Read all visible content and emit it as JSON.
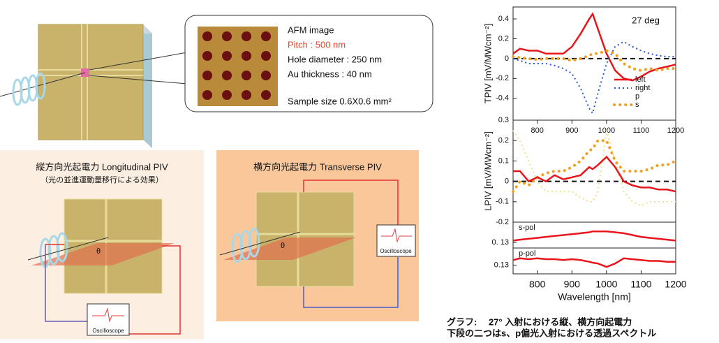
{
  "sample": {
    "callout": {
      "title": "AFM image",
      "pitch": "Pitch : 500 nm",
      "hole": "Hole diameter : 250 nm",
      "thickness": "Au thickness : 40 nm",
      "size": "Sample size 0.6X0.6 mm²"
    }
  },
  "panels": [
    {
      "title": "縦方向光起電力  Longitudinal PIV",
      "subtitle": "（光の並進運動量移行による効果）",
      "angle": "θ",
      "instrument": "Oscilloscope"
    },
    {
      "title": "横方向光起電力  Transverse PIV",
      "angle": "θ",
      "instrument": "Oscilloscope"
    }
  ],
  "caption": [
    "グラフ:　 27°  入射における縦、横方向起電力",
    "下段の二つはs、p偏光入射における透過スペクトル"
  ],
  "chart_data": [
    {
      "type": "line",
      "ylabel": "TPIV [mV/MWcm⁻²]",
      "annotation": "27 deg",
      "x": [
        730,
        750,
        775,
        800,
        825,
        850,
        875,
        900,
        925,
        950,
        960,
        975,
        1000,
        1025,
        1050,
        1075,
        1100,
        1125,
        1150,
        1175,
        1200
      ],
      "xlim": [
        730,
        1200
      ],
      "ylim": [
        -0.62,
        0.52
      ],
      "yticks": [
        -0.4,
        -0.2,
        0.0,
        0.2,
        0.4
      ],
      "legend": "lower right",
      "series": [
        {
          "name": "left",
          "color": "#e8161b",
          "style": "solid",
          "values": [
            0.05,
            0.1,
            0.08,
            0.08,
            0.05,
            0.05,
            0.05,
            0.12,
            0.25,
            0.4,
            0.45,
            0.3,
            0.05,
            -0.12,
            -0.2,
            -0.22,
            -0.18,
            -0.13,
            -0.1,
            -0.08,
            -0.06
          ]
        },
        {
          "name": "right",
          "color": "#2a55d6",
          "style": "dotted",
          "values": [
            0,
            -0.02,
            -0.05,
            -0.05,
            -0.05,
            -0.07,
            -0.1,
            -0.15,
            -0.3,
            -0.5,
            -0.55,
            -0.35,
            -0.05,
            0.12,
            0.17,
            0.12,
            0.08,
            0.05,
            0.03,
            0.02,
            0.02
          ]
        },
        {
          "name": "p",
          "values": [
            null,
            null,
            null,
            null,
            null,
            null,
            null,
            null,
            null,
            null,
            null,
            null,
            null,
            null,
            null,
            null,
            null,
            null,
            null,
            null,
            null
          ]
        },
        {
          "name": "s",
          "color": "#f0a020",
          "style": "dots",
          "values": [
            0.02,
            0.01,
            0,
            -0.01,
            0,
            0,
            0,
            -0.02,
            0,
            0.03,
            0.05,
            0.05,
            0.08,
            0.05,
            -0.05,
            -0.1,
            -0.12,
            -0.1,
            -0.12,
            -0.1,
            -0.1
          ]
        }
      ]
    },
    {
      "type": "line",
      "ylabel": "LPIV [mV/MWcm⁻²]",
      "x": [
        730,
        750,
        775,
        800,
        825,
        850,
        875,
        900,
        925,
        950,
        960,
        975,
        1000,
        1025,
        1050,
        1075,
        1100,
        1125,
        1150,
        1175,
        1200
      ],
      "xlim": [
        730,
        1200
      ],
      "xticks": [
        800,
        900,
        1000,
        1100,
        1200
      ],
      "ylim": [
        -0.2,
        0.3
      ],
      "yticks": [
        -0.2,
        -0.1,
        0.0,
        0.1,
        0.2,
        0.3
      ],
      "series": [
        {
          "color": "#f0e08a",
          "style": "dotted",
          "values": [
            0.25,
            0.2,
            0.1,
            0.0,
            -0.05,
            -0.05,
            -0.05,
            -0.05,
            -0.08,
            -0.1,
            -0.1,
            -0.05,
            0.25,
            0.1,
            -0.05,
            -0.1,
            -0.12,
            -0.1,
            -0.1,
            -0.1,
            -0.1
          ]
        },
        {
          "color": "#f0a020",
          "style": "dots",
          "values": [
            -0.05,
            0.0,
            -0.02,
            0.02,
            0.04,
            0.05,
            0.05,
            0.07,
            0.1,
            0.15,
            0.16,
            0.2,
            0.2,
            0.1,
            0.05,
            0.05,
            0.05,
            0.06,
            0.08,
            0.08,
            0.1
          ]
        },
        {
          "color": "#e8161b",
          "style": "solid",
          "values": [
            0.05,
            0.05,
            0.0,
            0.02,
            0.0,
            0.03,
            0.01,
            0.02,
            0.03,
            0.07,
            0.06,
            0.08,
            0.12,
            0.07,
            0.0,
            -0.02,
            -0.03,
            -0.03,
            -0.04,
            -0.04,
            -0.05
          ]
        }
      ]
    },
    {
      "type": "line",
      "label": "s-pol",
      "x": [
        730,
        750,
        775,
        800,
        825,
        850,
        875,
        900,
        925,
        950,
        960,
        975,
        1000,
        1025,
        1050,
        1075,
        1100,
        1125,
        1150,
        1175,
        1200
      ],
      "xlim": [
        730,
        1200
      ],
      "ylim": [
        0.127,
        0.141
      ],
      "yticks": [
        {
          "value": 0.13,
          "label": "0. 13"
        }
      ],
      "series": [
        {
          "color": "#e8161b",
          "style": "solid",
          "values": [
            0.131,
            0.1315,
            0.132,
            0.1325,
            0.133,
            0.1335,
            0.134,
            0.1345,
            0.135,
            0.1355,
            0.136,
            0.136,
            0.136,
            0.1355,
            0.135,
            0.134,
            0.133,
            0.1325,
            0.132,
            0.1315,
            0.131
          ]
        }
      ]
    },
    {
      "type": "line",
      "label": "p-pol",
      "xlabel": "Wavelength [nm]",
      "x": [
        730,
        750,
        775,
        800,
        825,
        850,
        875,
        900,
        925,
        950,
        960,
        975,
        1000,
        1025,
        1050,
        1075,
        1100,
        1125,
        1150,
        1175,
        1200
      ],
      "xlim": [
        730,
        1200
      ],
      "xticks": [
        800,
        900,
        1000,
        1100,
        1200
      ],
      "ylim": [
        0.125,
        0.14
      ],
      "yticks": [
        {
          "value": 0.13,
          "label": "0.13"
        }
      ],
      "series": [
        {
          "color": "#e8161b",
          "style": "solid",
          "values": [
            0.133,
            0.134,
            0.1335,
            0.134,
            0.1335,
            0.1335,
            0.133,
            0.1335,
            0.133,
            0.132,
            0.1315,
            0.131,
            0.129,
            0.131,
            0.134,
            0.1335,
            0.133,
            0.1325,
            0.1325,
            0.132,
            0.132
          ]
        }
      ]
    }
  ]
}
